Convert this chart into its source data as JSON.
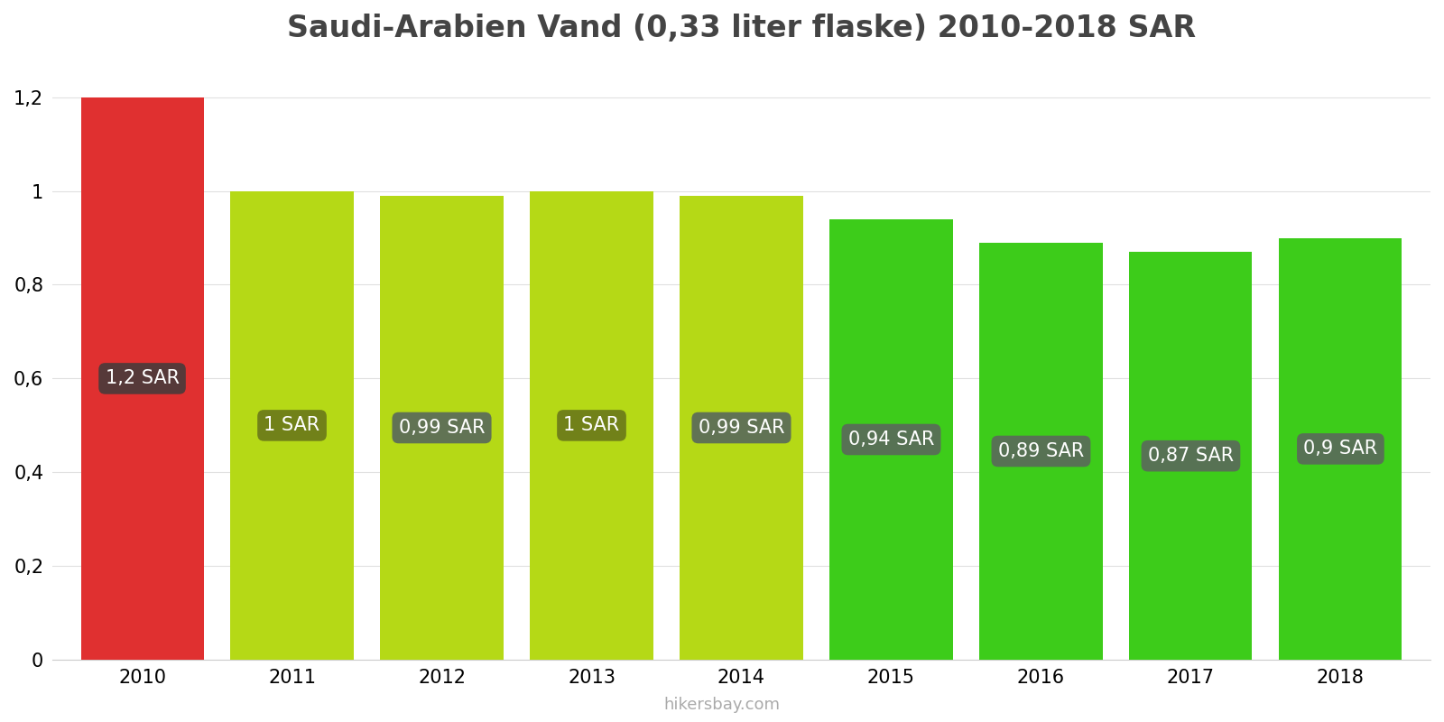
{
  "title": "Saudi-Arabien Vand (0,33 liter flaske) 2010-2018 SAR",
  "years": [
    2010,
    2011,
    2012,
    2013,
    2014,
    2015,
    2016,
    2017,
    2018
  ],
  "values": [
    1.2,
    1.0,
    0.99,
    1.0,
    0.99,
    0.94,
    0.89,
    0.87,
    0.9
  ],
  "labels": [
    "1,2 SAR",
    "1 SAR",
    "0,99 SAR",
    "1 SAR",
    "0,99 SAR",
    "0,94 SAR",
    "0,89 SAR",
    "0,87 SAR",
    "0,9 SAR"
  ],
  "bar_colors": [
    "#e03030",
    "#b5d916",
    "#b5d916",
    "#b5d916",
    "#b5d916",
    "#3dcc1a",
    "#3dcc1a",
    "#3dcc1a",
    "#3dcc1a"
  ],
  "label_bg_colors": [
    "#4a3a3a",
    "#6b7a1a",
    "#5a6a5a",
    "#6b7a1a",
    "#5a6a5a",
    "#5a6a5a",
    "#5a6a5a",
    "#5a6a5a",
    "#5a6a5a"
  ],
  "ylim": [
    0,
    1.28
  ],
  "yticks": [
    0,
    0.2,
    0.4,
    0.6,
    0.8,
    1.0,
    1.2
  ],
  "background_color": "#ffffff",
  "label_text_color": "#ffffff",
  "footer": "hikersbay.com",
  "title_fontsize": 24,
  "label_fontsize": 15,
  "tick_fontsize": 15,
  "footer_fontsize": 13,
  "bar_width": 0.82
}
